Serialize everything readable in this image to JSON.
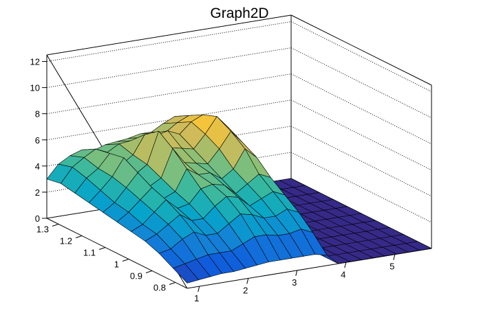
{
  "chart_data": {
    "type": "surface",
    "title": "Graph2D",
    "x_ticks": [
      "1",
      "2",
      "3",
      "4",
      "5"
    ],
    "y_ticks": [
      "0.8",
      "0.9",
      "1",
      "1.1",
      "1.2",
      "1.3"
    ],
    "z_ticks": [
      "0",
      "2",
      "4",
      "6",
      "8",
      "10",
      "12"
    ],
    "xlim": [
      0.75,
      5.75
    ],
    "ylim": [
      0.75,
      1.35
    ],
    "zlim": [
      0,
      12.5
    ],
    "grid": true,
    "palette": [
      "#352a87",
      "#0f5cdd",
      "#1481d6",
      "#06a4ca",
      "#2eb7a4",
      "#87bf77",
      "#d1bb59",
      "#fec832",
      "#f9fb0e"
    ],
    "surface_rows": [
      [
        3.0,
        4.0,
        4.5,
        4.8,
        4.6,
        4.9,
        5.0,
        5.1,
        5.3,
        5.3,
        5.8,
        6.2,
        6.0,
        0,
        0,
        0,
        0,
        0,
        0,
        0,
        0,
        0
      ],
      [
        3.2,
        4.3,
        4.9,
        5.4,
        5.0,
        5.5,
        5.6,
        5.7,
        5.9,
        5.8,
        6.4,
        6.8,
        6.4,
        0,
        0,
        0,
        0,
        0,
        0,
        0,
        0,
        0
      ],
      [
        3.0,
        4.0,
        4.6,
        5.6,
        4.6,
        5.2,
        6.6,
        6.4,
        6.6,
        6.2,
        7.0,
        7.4,
        6.8,
        0,
        0,
        0,
        0,
        0,
        0,
        0,
        0,
        0
      ],
      [
        2.8,
        3.6,
        4.5,
        5.8,
        4.4,
        5.0,
        7.4,
        6.0,
        5.8,
        5.6,
        6.6,
        7.8,
        6.8,
        0,
        0,
        0,
        0,
        0,
        0,
        0,
        0,
        0
      ],
      [
        2.6,
        3.2,
        4.2,
        5.2,
        4.0,
        4.5,
        6.6,
        5.4,
        5.2,
        5.0,
        6.0,
        7.2,
        6.2,
        0,
        0,
        0,
        0,
        0,
        0,
        0,
        0,
        0
      ],
      [
        2.4,
        3.0,
        3.8,
        4.6,
        3.6,
        4.0,
        5.6,
        5.0,
        5.0,
        4.4,
        5.0,
        6.4,
        5.6,
        0,
        0,
        0,
        0,
        0,
        0,
        0,
        0,
        0
      ],
      [
        2.2,
        2.6,
        3.4,
        4.2,
        3.4,
        3.6,
        4.6,
        4.8,
        4.6,
        3.8,
        4.4,
        5.0,
        4.6,
        0,
        0,
        0,
        0,
        0,
        0,
        0,
        0,
        0
      ],
      [
        2.0,
        2.4,
        3.0,
        3.6,
        3.0,
        3.0,
        3.8,
        4.4,
        4.2,
        3.4,
        3.8,
        4.2,
        3.8,
        0,
        0,
        0,
        0,
        0,
        0,
        0,
        0,
        0
      ],
      [
        1.6,
        1.8,
        2.4,
        2.8,
        2.4,
        2.4,
        3.0,
        3.6,
        3.4,
        3.0,
        3.0,
        3.4,
        3.0,
        0,
        0,
        0,
        0,
        0,
        0,
        0,
        0,
        0
      ],
      [
        1.0,
        1.2,
        1.4,
        1.6,
        1.6,
        1.6,
        2.0,
        2.4,
        2.4,
        2.2,
        2.2,
        2.4,
        2.0,
        0,
        0,
        0,
        0,
        0,
        0,
        0,
        0,
        0
      ],
      [
        0.4,
        0.5,
        0.6,
        0.7,
        0.7,
        0.8,
        0.9,
        1.0,
        1.0,
        1.0,
        1.0,
        1.0,
        0.8,
        0,
        0,
        0,
        0,
        0,
        0,
        0,
        0,
        0
      ]
    ]
  }
}
